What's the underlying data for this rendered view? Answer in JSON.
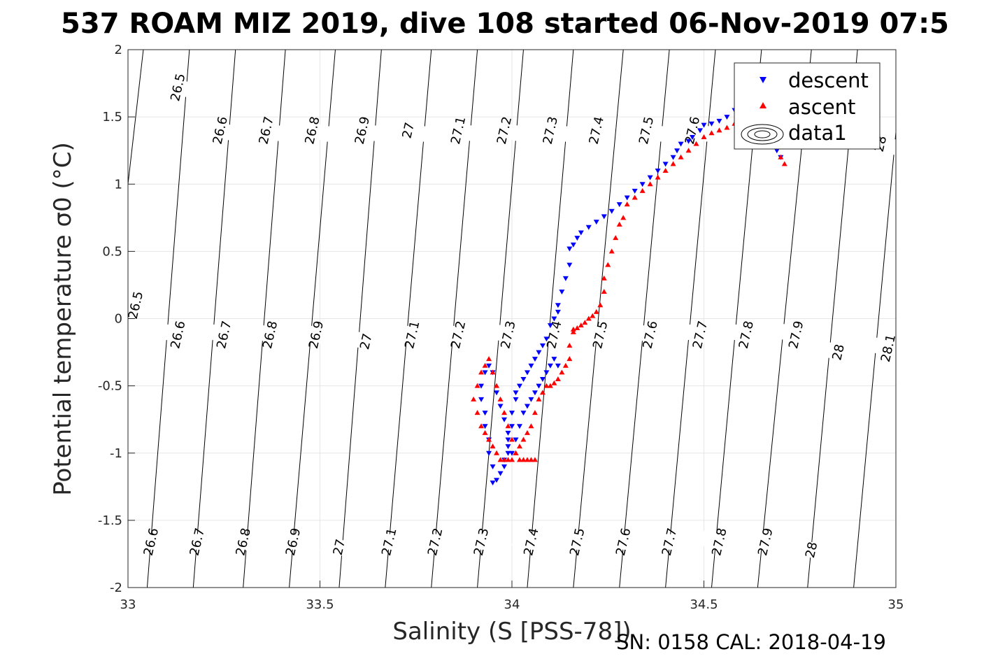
{
  "title": "537 ROAM MIZ 2019, dive 108 started 06-Nov-2019 07:5",
  "footer": "SN: 0158  CAL: 2018-04-19",
  "colors": {
    "descent": "#0000ff",
    "ascent": "#ff0000",
    "contour": "#000000",
    "grid": "#e6e6e6"
  },
  "chart_data": {
    "type": "scatter",
    "xlabel": "Salinity (S [PSS-78])",
    "ylabel": "Potential temperature σ0 (°C)",
    "xlim": [
      33,
      35
    ],
    "ylim": [
      -2,
      2
    ],
    "xticks": [
      33,
      33.5,
      34,
      34.5,
      35
    ],
    "yticks": [
      -2,
      -1.5,
      -1,
      -0.5,
      0,
      0.5,
      1,
      1.5,
      2
    ],
    "grid": true,
    "legend": {
      "placement": "top-right",
      "entries": [
        "descent",
        "ascent",
        "data1"
      ]
    },
    "isopycnals": [
      {
        "sigma": 26.5,
        "label": "26.5",
        "s_at_t_min": 32.88,
        "s_at_t_max": 33.04
      },
      {
        "sigma": 26.6,
        "label": "26.6",
        "s_at_t_min": 33.05,
        "s_at_t_max": 33.16
      },
      {
        "sigma": 26.7,
        "label": "26.7",
        "s_at_t_min": 33.17,
        "s_at_t_max": 33.28
      },
      {
        "sigma": 26.8,
        "label": "26.8",
        "s_at_t_min": 33.3,
        "s_at_t_max": 33.41
      },
      {
        "sigma": 26.9,
        "label": "26.9",
        "s_at_t_min": 33.42,
        "s_at_t_max": 33.54
      },
      {
        "sigma": 27.0,
        "label": "27",
        "s_at_t_min": 33.55,
        "s_at_t_max": 33.66
      },
      {
        "sigma": 27.1,
        "label": "27.1",
        "s_at_t_min": 33.67,
        "s_at_t_max": 33.79
      },
      {
        "sigma": 27.2,
        "label": "27.2",
        "s_at_t_min": 33.79,
        "s_at_t_max": 33.91
      },
      {
        "sigma": 27.3,
        "label": "27.3",
        "s_at_t_min": 33.91,
        "s_at_t_max": 34.03
      },
      {
        "sigma": 27.4,
        "label": "27.4",
        "s_at_t_min": 34.04,
        "s_at_t_max": 34.16
      },
      {
        "sigma": 27.5,
        "label": "27.5",
        "s_at_t_min": 34.16,
        "s_at_t_max": 34.29
      },
      {
        "sigma": 27.6,
        "label": "27.6",
        "s_at_t_min": 34.28,
        "s_at_t_max": 34.41
      },
      {
        "sigma": 27.7,
        "label": "27.7",
        "s_at_t_min": 34.4,
        "s_at_t_max": 34.53
      },
      {
        "sigma": 27.8,
        "label": "27.8",
        "s_at_t_min": 34.52,
        "s_at_t_max": 34.65
      },
      {
        "sigma": 27.9,
        "label": "27.9",
        "s_at_t_min": 34.64,
        "s_at_t_max": 34.78
      },
      {
        "sigma": 28.0,
        "label": "28",
        "s_at_t_min": 34.77,
        "s_at_t_max": 34.9
      },
      {
        "sigma": 28.1,
        "label": "28.1",
        "s_at_t_min": 34.89,
        "s_at_t_max": 35.02
      }
    ],
    "contour_labels": [
      {
        "label": "26.5",
        "s": 33.13,
        "t": 1.72
      },
      {
        "label": "26.6",
        "s": 33.24,
        "t": 1.4
      },
      {
        "label": "26.7",
        "s": 33.36,
        "t": 1.4
      },
      {
        "label": "26.8",
        "s": 33.48,
        "t": 1.4
      },
      {
        "label": "26.9",
        "s": 33.61,
        "t": 1.4
      },
      {
        "label": "27",
        "s": 33.73,
        "t": 1.4
      },
      {
        "label": "27.1",
        "s": 33.86,
        "t": 1.4
      },
      {
        "label": "27.2",
        "s": 33.98,
        "t": 1.4
      },
      {
        "label": "27.3",
        "s": 34.1,
        "t": 1.4
      },
      {
        "label": "27.4",
        "s": 34.22,
        "t": 1.4
      },
      {
        "label": "27.5",
        "s": 34.35,
        "t": 1.4
      },
      {
        "label": "27.6",
        "s": 34.47,
        "t": 1.4
      },
      {
        "label": "28",
        "s": 34.96,
        "t": 1.3
      },
      {
        "label": "26.5",
        "s": 33.02,
        "t": 0.1
      },
      {
        "label": "26.6",
        "s": 33.13,
        "t": -0.12
      },
      {
        "label": "26.7",
        "s": 33.25,
        "t": -0.12
      },
      {
        "label": "26.8",
        "s": 33.37,
        "t": -0.12
      },
      {
        "label": "26.9",
        "s": 33.49,
        "t": -0.12
      },
      {
        "label": "27",
        "s": 33.62,
        "t": -0.17
      },
      {
        "label": "27.1",
        "s": 33.74,
        "t": -0.12
      },
      {
        "label": "27.2",
        "s": 33.86,
        "t": -0.12
      },
      {
        "label": "27.3",
        "s": 33.99,
        "t": -0.12
      },
      {
        "label": "27.4",
        "s": 34.11,
        "t": -0.12
      },
      {
        "label": "27.5",
        "s": 34.23,
        "t": -0.12
      },
      {
        "label": "27.6",
        "s": 34.36,
        "t": -0.12
      },
      {
        "label": "27.7",
        "s": 34.49,
        "t": -0.12
      },
      {
        "label": "27.8",
        "s": 34.61,
        "t": -0.12
      },
      {
        "label": "27.9",
        "s": 34.74,
        "t": -0.12
      },
      {
        "label": "28",
        "s": 34.85,
        "t": -0.25
      },
      {
        "label": "28.1",
        "s": 34.98,
        "t": -0.22
      },
      {
        "label": "26.6",
        "s": 33.06,
        "t": -1.66
      },
      {
        "label": "26.7",
        "s": 33.18,
        "t": -1.66
      },
      {
        "label": "26.8",
        "s": 33.3,
        "t": -1.66
      },
      {
        "label": "26.9",
        "s": 33.43,
        "t": -1.66
      },
      {
        "label": "27",
        "s": 33.55,
        "t": -1.7
      },
      {
        "label": "27.1",
        "s": 33.68,
        "t": -1.66
      },
      {
        "label": "27.2",
        "s": 33.8,
        "t": -1.66
      },
      {
        "label": "27.3",
        "s": 33.92,
        "t": -1.66
      },
      {
        "label": "27.4",
        "s": 34.05,
        "t": -1.66
      },
      {
        "label": "27.5",
        "s": 34.17,
        "t": -1.66
      },
      {
        "label": "27.6",
        "s": 34.29,
        "t": -1.66
      },
      {
        "label": "27.7",
        "s": 34.41,
        "t": -1.66
      },
      {
        "label": "27.8",
        "s": 34.54,
        "t": -1.66
      },
      {
        "label": "27.9",
        "s": 34.66,
        "t": -1.66
      },
      {
        "label": "28",
        "s": 34.78,
        "t": -1.72
      }
    ],
    "series": [
      {
        "name": "descent",
        "marker": "triangle-down",
        "x": [
          34.7,
          34.69,
          34.68,
          34.66,
          34.64,
          34.62,
          34.6,
          34.58,
          34.56,
          34.54,
          34.52,
          34.5,
          34.49,
          34.47,
          34.46,
          34.44,
          34.43,
          34.42,
          34.4,
          34.38,
          34.36,
          34.34,
          34.32,
          34.3,
          34.28,
          34.26,
          34.24,
          34.22,
          34.2,
          34.18,
          34.17,
          34.16,
          34.15,
          34.15,
          34.14,
          34.13,
          34.12,
          34.12,
          34.11,
          34.1,
          34.09,
          34.08,
          34.07,
          34.06,
          34.05,
          34.04,
          34.03,
          34.02,
          34.01,
          34.01,
          34.0,
          34.0,
          33.99,
          33.99,
          33.98,
          33.98,
          33.97,
          33.96,
          33.95,
          33.95,
          33.94,
          33.94,
          33.93,
          33.93,
          33.92,
          33.92,
          33.93,
          33.94,
          33.95,
          33.96,
          33.97,
          33.98,
          33.99,
          33.99,
          34.0,
          34.01,
          34.02,
          34.03,
          34.04,
          34.05,
          34.06,
          34.07,
          34.08,
          34.09,
          34.1,
          34.11,
          34.12
        ],
        "y": [
          1.2,
          1.25,
          1.45,
          1.5,
          1.55,
          1.58,
          1.6,
          1.55,
          1.5,
          1.47,
          1.45,
          1.44,
          1.4,
          1.35,
          1.32,
          1.3,
          1.25,
          1.2,
          1.15,
          1.1,
          1.05,
          1.0,
          0.95,
          0.9,
          0.85,
          0.8,
          0.76,
          0.72,
          0.68,
          0.64,
          0.6,
          0.55,
          0.52,
          0.4,
          0.3,
          0.2,
          0.1,
          0.05,
          0.0,
          -0.05,
          -0.15,
          -0.2,
          -0.25,
          -0.3,
          -0.35,
          -0.4,
          -0.45,
          -0.5,
          -0.55,
          -0.6,
          -0.7,
          -0.8,
          -0.9,
          -1.0,
          -1.05,
          -1.1,
          -1.15,
          -1.2,
          -1.22,
          -1.1,
          -1.0,
          -0.9,
          -0.8,
          -0.7,
          -0.6,
          -0.5,
          -0.4,
          -0.35,
          -0.4,
          -0.55,
          -0.65,
          -0.75,
          -0.85,
          -0.95,
          -1.0,
          -0.9,
          -0.8,
          -0.7,
          -0.65,
          -0.6,
          -0.55,
          -0.5,
          -0.45,
          -0.4,
          -0.35,
          -0.3,
          -0.35
        ]
      },
      {
        "name": "ascent",
        "marker": "triangle-up",
        "x": [
          34.71,
          34.7,
          34.69,
          34.68,
          34.66,
          34.64,
          34.62,
          34.6,
          34.58,
          34.56,
          34.54,
          34.52,
          34.5,
          34.48,
          34.46,
          34.44,
          34.42,
          34.4,
          34.38,
          34.36,
          34.34,
          34.32,
          34.3,
          34.29,
          34.28,
          34.27,
          34.26,
          34.25,
          34.24,
          34.24,
          34.23,
          34.22,
          34.21,
          34.2,
          34.19,
          34.18,
          34.17,
          34.16,
          34.16,
          34.15,
          34.15,
          34.14,
          34.13,
          34.12,
          34.11,
          34.1,
          34.09,
          34.08,
          34.07,
          34.06,
          34.05,
          34.04,
          34.03,
          34.02,
          34.01,
          34.0,
          33.99,
          33.98,
          33.97,
          33.96,
          33.95,
          33.94,
          33.93,
          33.92,
          33.91,
          33.9,
          33.91,
          33.92,
          33.93,
          33.94,
          33.95,
          33.96,
          33.97,
          33.98,
          33.99,
          34.0,
          34.01,
          34.02,
          34.03,
          34.04,
          34.05,
          34.06
        ],
        "y": [
          1.15,
          1.2,
          1.3,
          1.4,
          1.45,
          1.5,
          1.55,
          1.5,
          1.45,
          1.42,
          1.4,
          1.38,
          1.35,
          1.3,
          1.25,
          1.2,
          1.15,
          1.1,
          1.05,
          1.0,
          0.95,
          0.9,
          0.85,
          0.75,
          0.7,
          0.6,
          0.5,
          0.4,
          0.3,
          0.2,
          0.1,
          0.05,
          0.02,
          0.0,
          -0.03,
          -0.05,
          -0.07,
          -0.08,
          -0.1,
          -0.2,
          -0.3,
          -0.35,
          -0.4,
          -0.45,
          -0.48,
          -0.5,
          -0.5,
          -0.55,
          -0.6,
          -0.7,
          -0.8,
          -0.85,
          -0.9,
          -0.95,
          -1.0,
          -1.05,
          -1.05,
          -1.05,
          -1.05,
          -1.0,
          -0.95,
          -0.9,
          -0.85,
          -0.8,
          -0.7,
          -0.6,
          -0.5,
          -0.4,
          -0.35,
          -0.3,
          -0.4,
          -0.5,
          -0.6,
          -0.7,
          -0.8,
          -0.9,
          -1.0,
          -1.05,
          -1.05,
          -1.05,
          -1.05,
          -1.05
        ]
      }
    ]
  }
}
